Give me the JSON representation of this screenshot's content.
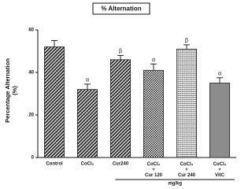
{
  "chart_data": {
    "type": "bar",
    "title": "% Alternation",
    "y_label": "Percentage Alternation\n(%)",
    "categories": [
      "Control",
      "CoCl₂",
      "Cur240",
      "CoCl₂\n+\nCur 120",
      "CoCl₂\n+\nCur 240",
      "CoCl₂\n+\nVitC"
    ],
    "values": [
      52,
      32,
      46,
      41,
      51,
      35
    ],
    "errors": [
      3,
      2.5,
      2,
      3,
      2,
      2.5
    ],
    "significance": [
      null,
      "α",
      "β",
      "α",
      "β",
      "α"
    ],
    "patterns": [
      "diagonal",
      "diagonal",
      "diagonal",
      "checker",
      "dots",
      "solid"
    ],
    "color": "#222222",
    "solid_color": "#8c8c8c",
    "group_label": "mg/kg",
    "ylim": [
      0,
      60
    ],
    "yticks": [
      0,
      20,
      40,
      60
    ]
  }
}
